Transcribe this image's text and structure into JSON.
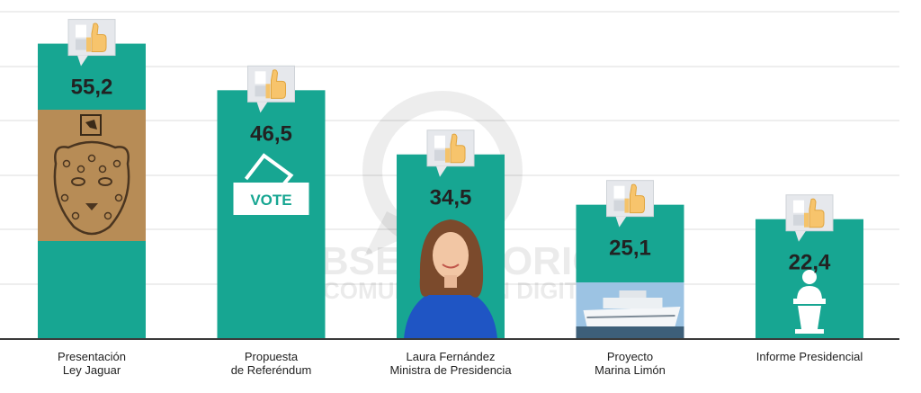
{
  "chart_data": {
    "type": "bar",
    "categories": [
      [
        "Presentación",
        "Ley Jaguar"
      ],
      [
        "Propuesta",
        "de Referéndum"
      ],
      [
        "Laura Fernández",
        "Ministra de Presidencia"
      ],
      [
        "Proyecto",
        "Marina Limón"
      ],
      [
        "Informe Presidencial"
      ]
    ],
    "values": [
      55.2,
      46.5,
      34.5,
      25.1,
      22.4
    ],
    "value_labels": [
      "55,2",
      "46,5",
      "34,5",
      "25,1",
      "22,4"
    ],
    "ylim": [
      0,
      60
    ],
    "grid": true,
    "bar_color": "#17a692",
    "bar_icons": [
      "jaguar-image",
      "vote-icon",
      "person-photo",
      "ship-photo",
      "speaker-podium-icon"
    ],
    "value_icon": "thumbs-up-icon"
  },
  "watermark": {
    "line1": "OBSERVATORIO",
    "line2": "DE COMUNICACIÓN DIGITAL"
  },
  "vote_label": "VOTE"
}
